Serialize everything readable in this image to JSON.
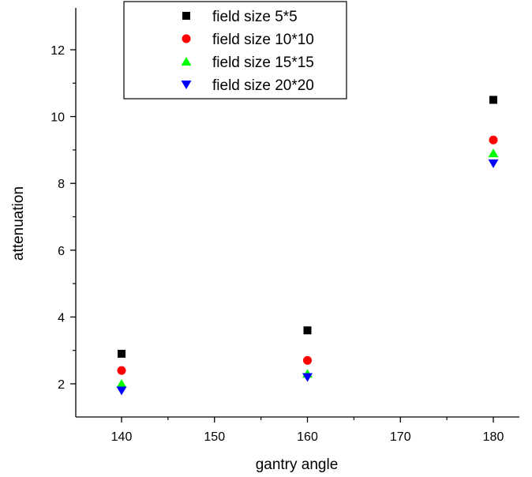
{
  "chart_data": {
    "type": "scatter",
    "title": "",
    "xlabel": "gantry angle",
    "ylabel": "attenuation",
    "xlim": [
      135,
      185
    ],
    "ylim": [
      1,
      12.5
    ],
    "x_ticks": [
      140,
      150,
      160,
      170,
      180
    ],
    "y_ticks": [
      2,
      4,
      6,
      8,
      10,
      12
    ],
    "grid": false,
    "legend_position": "top",
    "series": [
      {
        "name": "field size 5*5",
        "marker": "square",
        "color": "#000000",
        "x": [
          140,
          160,
          180
        ],
        "y": [
          2.9,
          3.6,
          10.5
        ]
      },
      {
        "name": "field size 10*10",
        "marker": "circle",
        "color": "#ff0000",
        "x": [
          140,
          160,
          180
        ],
        "y": [
          2.4,
          2.7,
          9.3
        ]
      },
      {
        "name": "field size 15*15",
        "marker": "triangle-up",
        "color": "#00ff00",
        "x": [
          140,
          160,
          180
        ],
        "y": [
          2.0,
          2.3,
          8.9
        ]
      },
      {
        "name": "field size 20*20",
        "marker": "triangle-down",
        "color": "#0000ff",
        "x": [
          140,
          160,
          180
        ],
        "y": [
          1.8,
          2.2,
          8.6
        ]
      }
    ]
  }
}
